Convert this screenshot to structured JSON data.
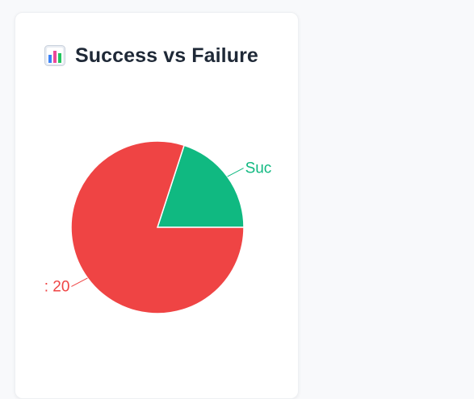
{
  "card": {
    "title": "Success vs Failure",
    "icon": "bar-chart-icon"
  },
  "chart_data": {
    "type": "pie",
    "title": "Success vs Failure",
    "series": [
      {
        "name": "Success",
        "value": 5,
        "color": "#10b981",
        "label_visible": "Suc"
      },
      {
        "name": "Failure",
        "value": 20,
        "color": "#ef4444",
        "label_visible": ": 20"
      }
    ],
    "legend": "none"
  }
}
